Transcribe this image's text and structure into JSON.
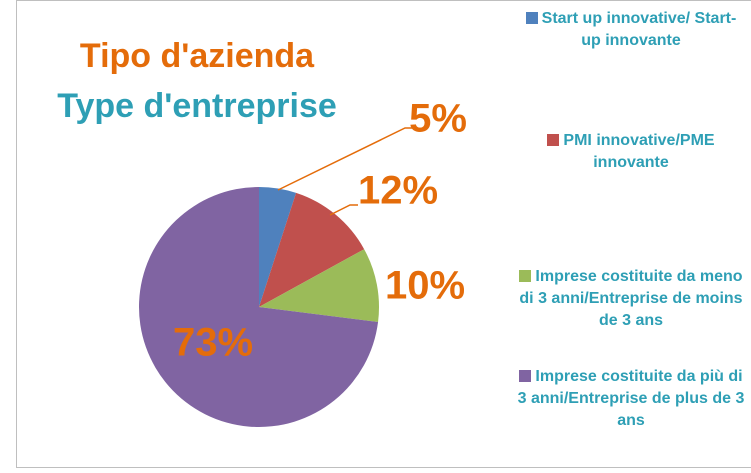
{
  "chart_data": {
    "type": "pie",
    "title": "Tipo d'azienda",
    "subtitle": "Type d'entreprise",
    "categories": [
      "Start up innovative/ Start-up innovante",
      "PMI innovative/PME innovante",
      "Imprese costituite da meno di 3 anni/Entreprise de moins de 3 ans",
      "Imprese costituite da più di 3 anni/Entreprise de plus de 3 ans"
    ],
    "values": [
      5,
      12,
      10,
      73
    ],
    "value_labels": [
      "5%",
      "12%",
      "10%",
      "73%"
    ],
    "colors": [
      "#4f81bd",
      "#c0504d",
      "#9bbb59",
      "#8064a2"
    ]
  }
}
